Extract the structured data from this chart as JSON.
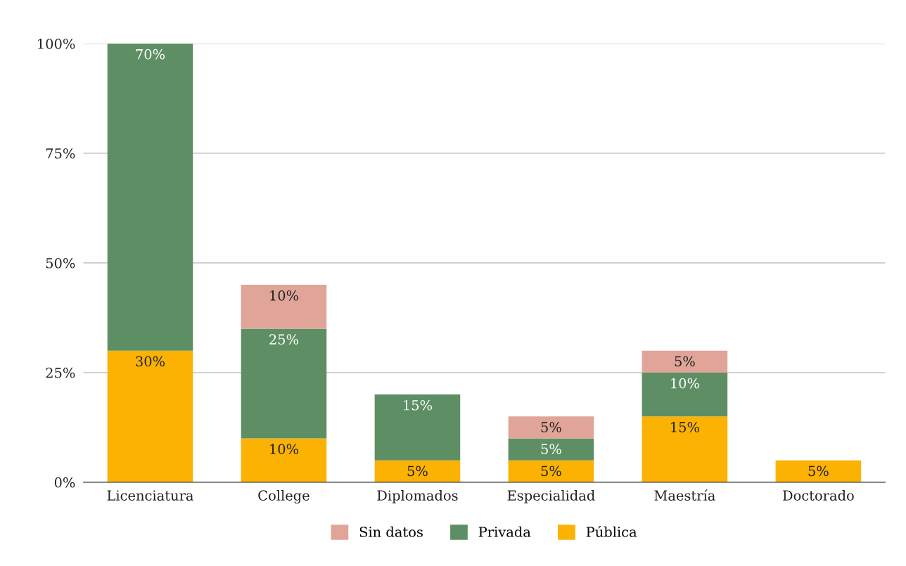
{
  "chart_data": {
    "type": "bar",
    "stacked": true,
    "categories": [
      "Licenciatura",
      "College",
      "Diplomados",
      "Especialidad",
      "Maestría",
      "Doctorado"
    ],
    "series": [
      {
        "name": "Pública",
        "color": "#fbb203",
        "values": [
          30,
          10,
          5,
          5,
          15,
          5
        ],
        "value_labels": [
          "30%",
          "10%",
          "5%",
          "5%",
          "15%",
          "5%"
        ]
      },
      {
        "name": "Privada",
        "color": "#5e8f64",
        "values": [
          70,
          25,
          15,
          5,
          10,
          null
        ],
        "value_labels": [
          "70%",
          "25%",
          "15%",
          "5%",
          "10%",
          null
        ]
      },
      {
        "name": "Sin datos",
        "color": "#e0a598",
        "values": [
          null,
          10,
          null,
          5,
          5,
          null
        ],
        "value_labels": [
          null,
          "10%",
          null,
          "5%",
          "5%",
          null
        ]
      }
    ],
    "ylim": [
      0,
      100
    ],
    "yticks": [
      {
        "value": 0,
        "label": "0%"
      },
      {
        "value": 25,
        "label": "25%"
      },
      {
        "value": 50,
        "label": "50%"
      },
      {
        "value": 75,
        "label": "75%"
      },
      {
        "value": 100,
        "label": "100%"
      }
    ],
    "grid": "y",
    "legend": "bottom"
  }
}
